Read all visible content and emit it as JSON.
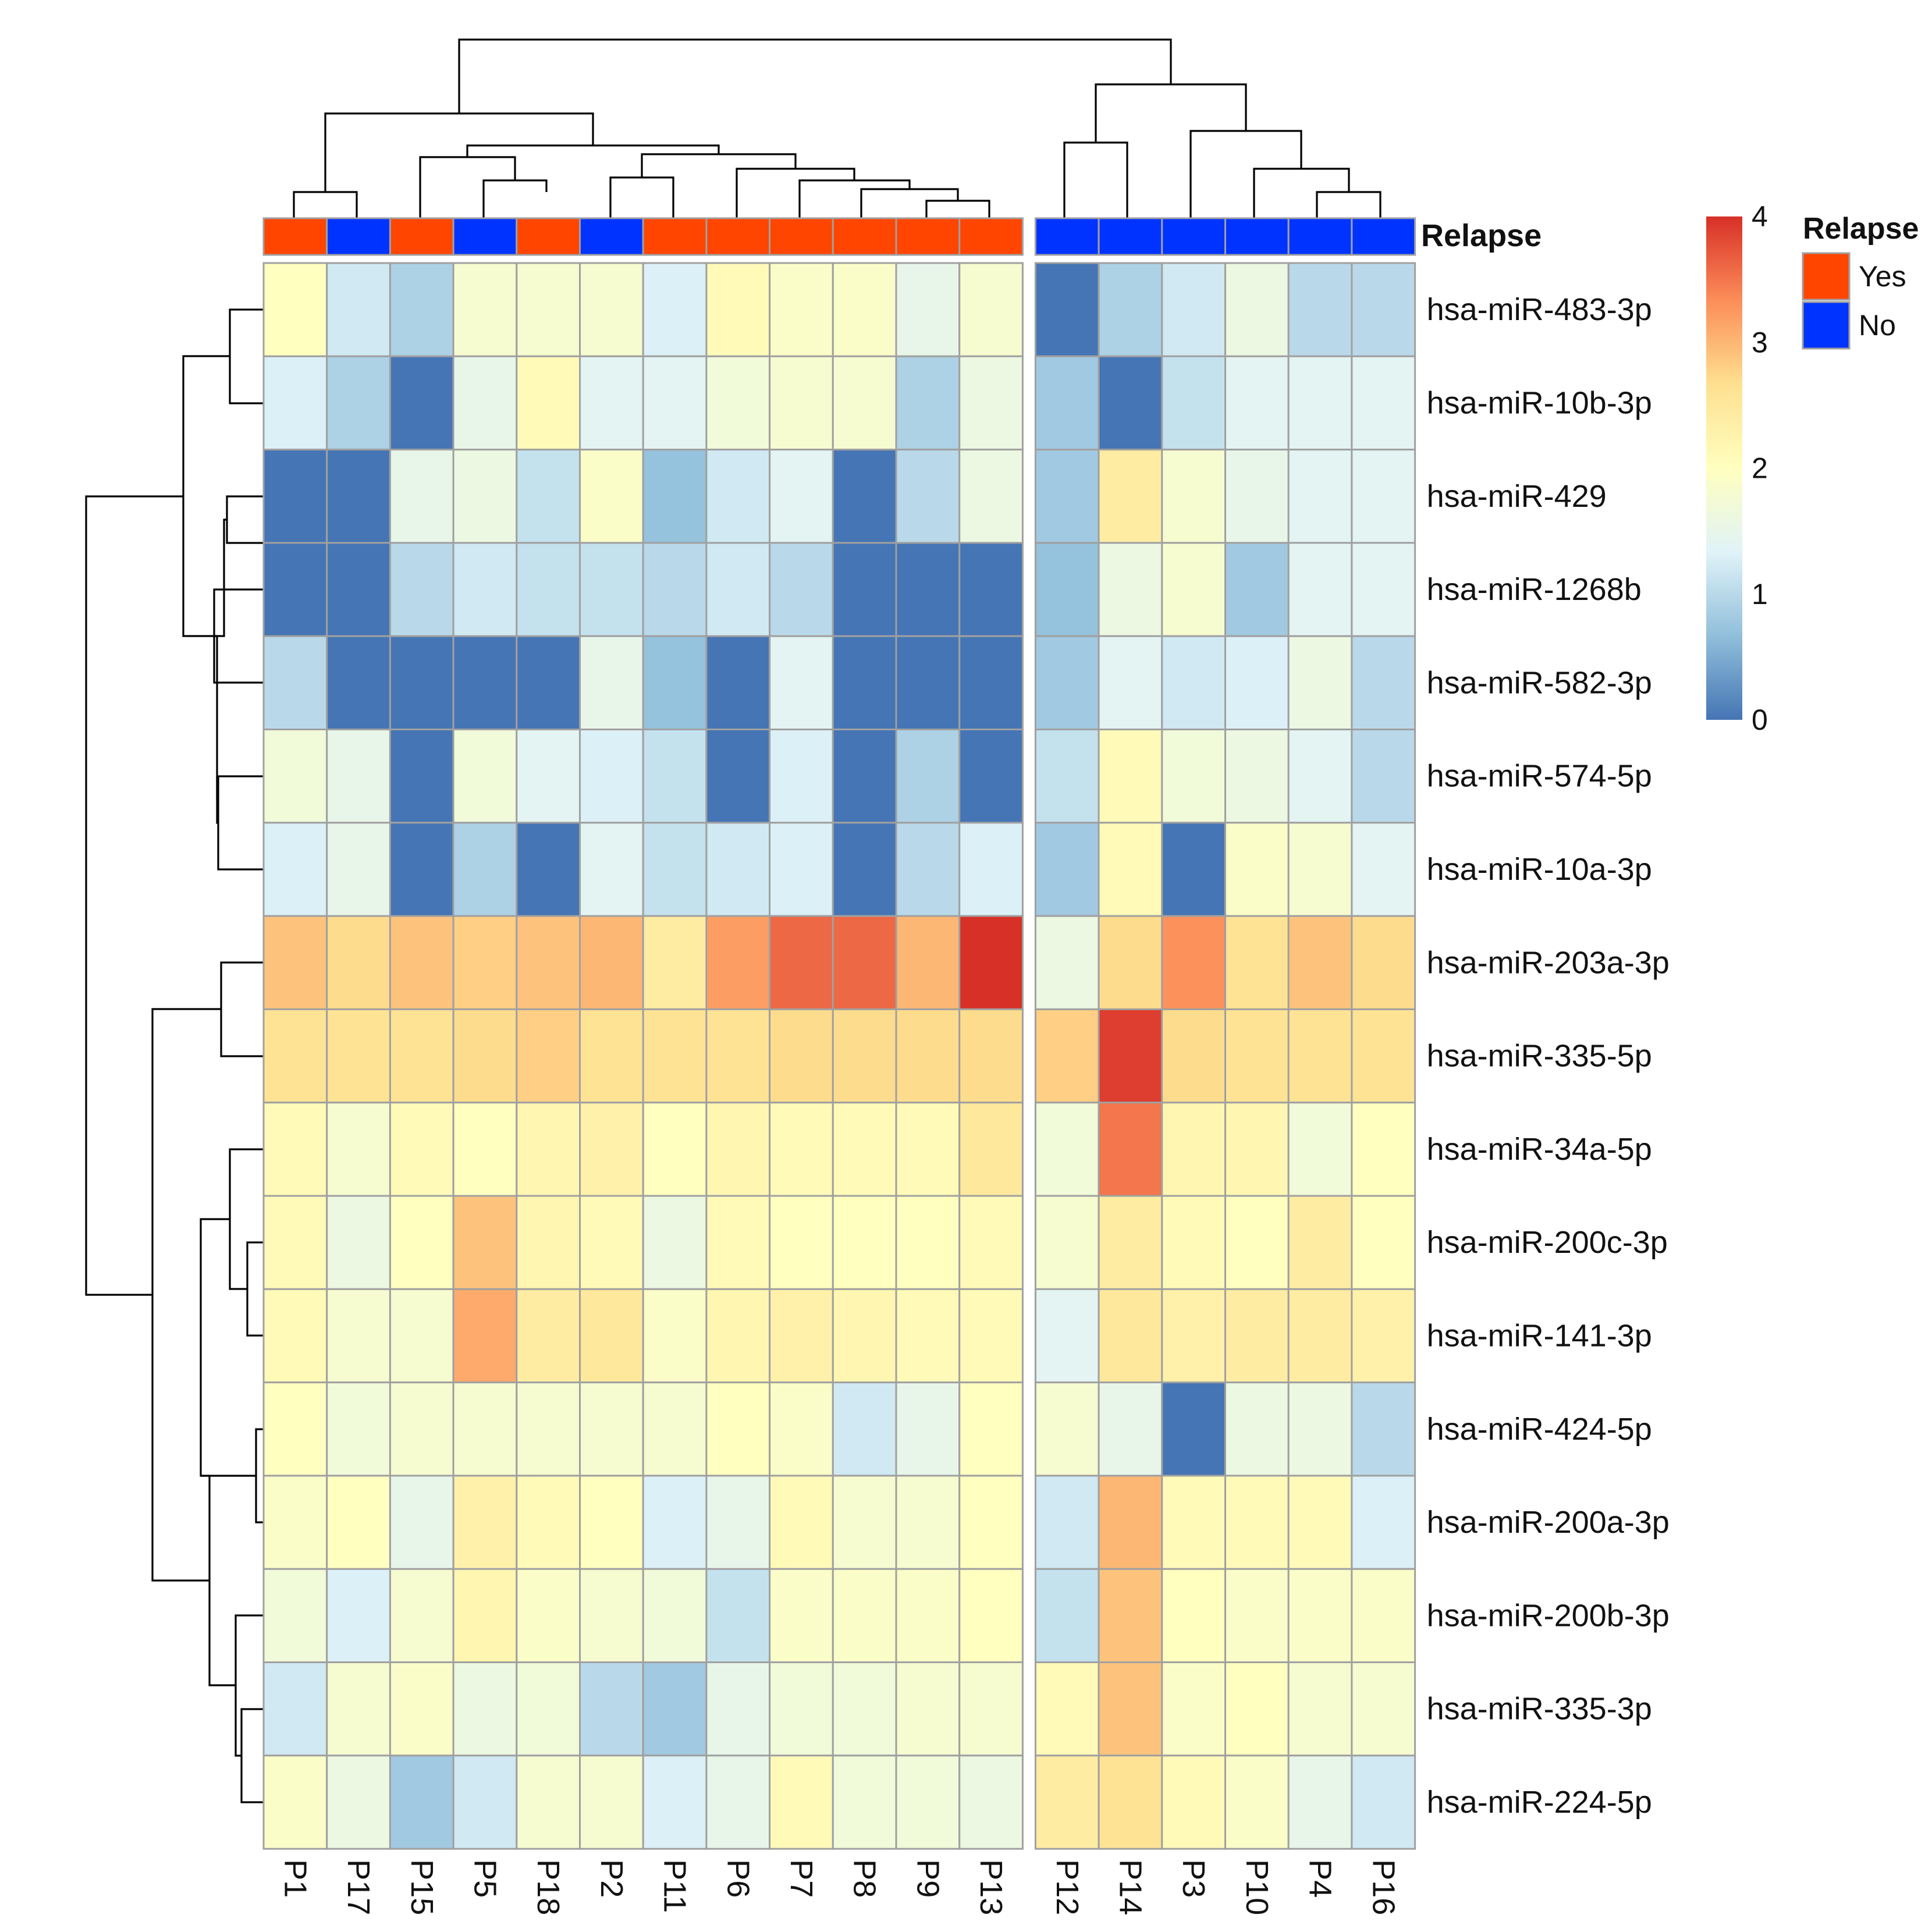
{
  "chart_data": {
    "type": "heatmap",
    "title": "",
    "columns": [
      "P1",
      "P17",
      "P15",
      "P5",
      "P18",
      "P2",
      "P11",
      "P6",
      "P7",
      "P8",
      "P9",
      "P13",
      "P12",
      "P14",
      "P3",
      "P10",
      "P4",
      "P16"
    ],
    "column_gap_after": "P13",
    "rows": [
      "hsa-miR-483-3p",
      "hsa-miR-10b-3p",
      "hsa-miR-429",
      "hsa-miR-1268b",
      "hsa-miR-582-3p",
      "hsa-miR-574-5p",
      "hsa-miR-10a-3p",
      "hsa-miR-203a-3p",
      "hsa-miR-335-5p",
      "hsa-miR-34a-5p",
      "hsa-miR-200c-3p",
      "hsa-miR-141-3p",
      "hsa-miR-424-5p",
      "hsa-miR-200a-3p",
      "hsa-miR-200b-3p",
      "hsa-miR-335-3p",
      "hsa-miR-224-5p"
    ],
    "values": [
      [
        2.0,
        1.2,
        0.9,
        1.8,
        1.8,
        1.8,
        1.3,
        2.1,
        1.9,
        1.9,
        1.5,
        1.8,
        0.0,
        0.9,
        1.2,
        1.6,
        1.0,
        1.0
      ],
      [
        1.3,
        0.9,
        0.0,
        1.5,
        2.1,
        1.4,
        1.4,
        1.7,
        1.8,
        1.8,
        0.9,
        1.6,
        0.8,
        0.0,
        1.1,
        1.4,
        1.4,
        1.4
      ],
      [
        0.0,
        0.0,
        1.5,
        1.6,
        1.1,
        1.9,
        0.7,
        1.2,
        1.4,
        0.0,
        1.0,
        1.6,
        0.8,
        2.4,
        1.8,
        1.5,
        1.4,
        1.4
      ],
      [
        0.0,
        0.0,
        1.0,
        1.2,
        1.1,
        1.1,
        1.0,
        1.2,
        1.0,
        0.0,
        0.0,
        0.0,
        0.7,
        1.6,
        1.8,
        0.8,
        1.4,
        1.4
      ],
      [
        1.0,
        0.0,
        0.0,
        0.0,
        0.0,
        1.5,
        0.7,
        0.0,
        1.4,
        0.0,
        0.0,
        0.0,
        0.8,
        1.4,
        1.2,
        1.3,
        1.6,
        1.0
      ],
      [
        1.7,
        1.5,
        0.0,
        1.7,
        1.4,
        1.3,
        1.1,
        0.0,
        1.3,
        0.0,
        0.9,
        0.0,
        1.1,
        2.1,
        1.7,
        1.6,
        1.4,
        1.0
      ],
      [
        1.3,
        1.5,
        0.0,
        0.9,
        0.0,
        1.4,
        1.1,
        1.2,
        1.3,
        0.0,
        1.0,
        1.3,
        0.8,
        2.1,
        0.0,
        1.9,
        1.8,
        1.4
      ],
      [
        2.9,
        2.7,
        2.9,
        2.8,
        2.9,
        3.0,
        2.4,
        3.2,
        3.6,
        3.6,
        3.0,
        4.0,
        1.6,
        2.7,
        3.3,
        2.6,
        2.9,
        2.7
      ],
      [
        2.6,
        2.6,
        2.6,
        2.7,
        2.8,
        2.6,
        2.6,
        2.6,
        2.7,
        2.7,
        2.7,
        2.7,
        2.8,
        3.9,
        2.7,
        2.6,
        2.6,
        2.6
      ],
      [
        2.1,
        1.8,
        2.1,
        2.0,
        2.2,
        2.3,
        2.0,
        2.2,
        2.1,
        2.1,
        2.1,
        2.5,
        1.7,
        3.5,
        2.2,
        2.2,
        1.7,
        2.0
      ],
      [
        2.1,
        1.6,
        2.0,
        2.9,
        2.2,
        2.1,
        1.6,
        2.1,
        2.0,
        2.0,
        2.0,
        2.1,
        1.8,
        2.4,
        2.1,
        2.0,
        2.4,
        2.0
      ],
      [
        2.1,
        1.8,
        1.8,
        3.1,
        2.4,
        2.5,
        1.9,
        2.2,
        2.3,
        2.2,
        2.1,
        2.1,
        1.4,
        2.5,
        2.3,
        2.4,
        2.4,
        2.3
      ],
      [
        2.0,
        1.7,
        1.8,
        1.8,
        1.8,
        1.8,
        1.8,
        2.0,
        1.9,
        1.2,
        1.5,
        2.0,
        1.8,
        1.5,
        0.0,
        1.6,
        1.6,
        1.0
      ],
      [
        1.9,
        2.0,
        1.5,
        2.3,
        2.1,
        2.0,
        1.3,
        1.5,
        2.1,
        1.8,
        1.8,
        2.0,
        1.2,
        3.0,
        2.1,
        2.1,
        2.1,
        1.3
      ],
      [
        1.7,
        1.3,
        1.8,
        2.2,
        1.9,
        1.8,
        1.7,
        1.1,
        1.9,
        1.9,
        1.9,
        2.0,
        1.1,
        2.9,
        2.0,
        1.9,
        1.9,
        1.9
      ],
      [
        1.2,
        1.8,
        1.9,
        1.6,
        1.7,
        1.0,
        0.8,
        1.5,
        1.7,
        1.7,
        1.8,
        1.8,
        2.1,
        2.9,
        1.9,
        2.0,
        1.8,
        1.8
      ],
      [
        1.9,
        1.6,
        0.8,
        1.2,
        1.8,
        1.8,
        1.3,
        1.5,
        2.1,
        1.7,
        1.7,
        1.6,
        2.4,
        2.6,
        2.1,
        1.9,
        1.5,
        1.2
      ]
    ],
    "annotation": {
      "name": "Relapse",
      "values": [
        "Yes",
        "No",
        "Yes",
        "No",
        "Yes",
        "No",
        "Yes",
        "Yes",
        "Yes",
        "Yes",
        "Yes",
        "Yes",
        "No",
        "No",
        "No",
        "No",
        "No",
        "No"
      ],
      "colors": {
        "Yes": "#ff4500",
        "No": "#0033ff"
      }
    },
    "color_scale": {
      "min": 0,
      "max": 4,
      "ticks": [
        "0",
        "1",
        "2",
        "3",
        "4"
      ],
      "stops": [
        "#4575b4",
        "#91bfdb",
        "#e0f3f8",
        "#ffffbf",
        "#fee090",
        "#fc8d59",
        "#d73027"
      ]
    },
    "legends": {
      "colorbar_position": "right",
      "annotation_title": "Relapse",
      "annotation_items": [
        "Yes",
        "No"
      ]
    }
  }
}
